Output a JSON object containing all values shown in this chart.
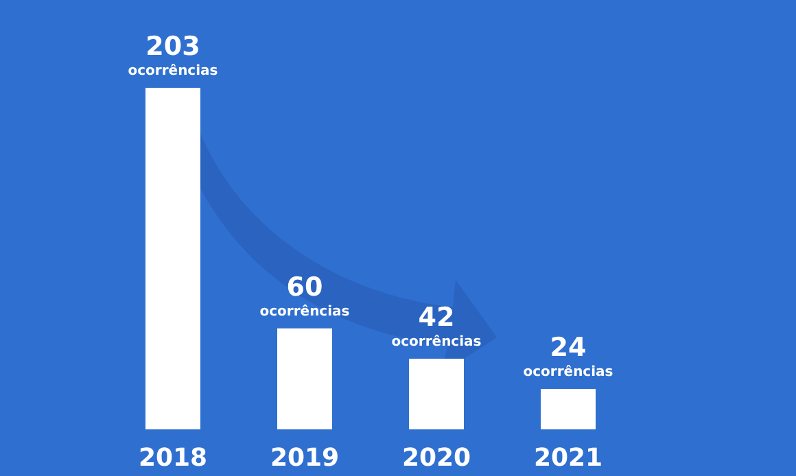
{
  "chart_data": {
    "type": "bar",
    "categories": [
      "2018",
      "2019",
      "2020",
      "2021"
    ],
    "values": [
      203,
      60,
      42,
      24
    ],
    "color": "#ffffff",
    "value_labels": [
      "203 ocorrências",
      "60 ocorrências",
      "42 ocorrências",
      "24 ocorrências"
    ],
    "grid": false
  }
}
